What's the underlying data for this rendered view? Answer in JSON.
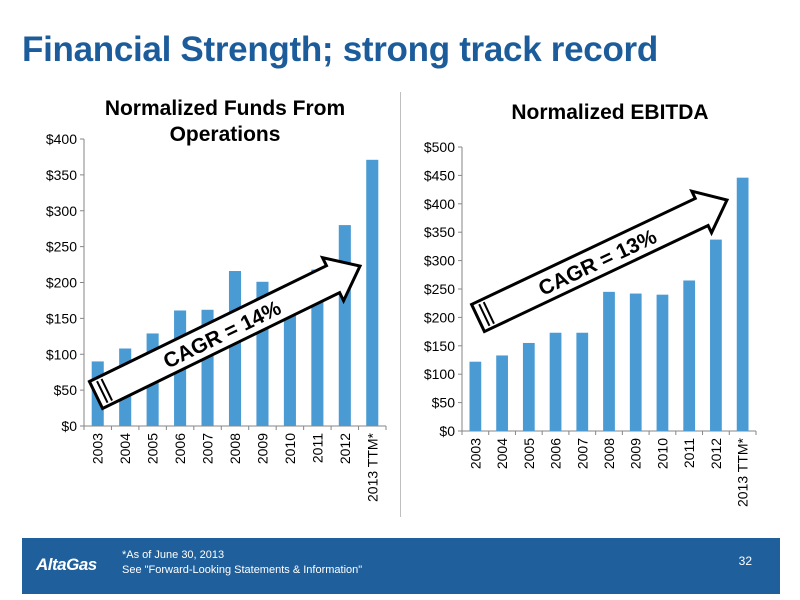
{
  "slide": {
    "title": "Financial Strength; strong track record",
    "page_number": "32",
    "footnotes": [
      "*As of June 30, 2013",
      "See \"Forward-Looking Statements & Information\""
    ],
    "logo_text": "AltaGas"
  },
  "colors": {
    "bar": "#4a9bd4",
    "title": "#1c5c9a",
    "footer": "#1f5f9b"
  },
  "chart_data": [
    {
      "type": "bar",
      "title": "Normalized Funds From Operations",
      "categories": [
        "2003",
        "2004",
        "2005",
        "2006",
        "2007",
        "2008",
        "2009",
        "2010",
        "2011",
        "2012",
        "2013 TTM*"
      ],
      "values": [
        90,
        108,
        129,
        161,
        162,
        216,
        201,
        192,
        218,
        280,
        371
      ],
      "ylim": [
        0,
        400
      ],
      "yticks": [
        "$0",
        "$50",
        "$100",
        "$150",
        "$200",
        "$250",
        "$300",
        "$350",
        "$400"
      ],
      "ytick_step": 50,
      "xlabel": "",
      "ylabel": "",
      "grid": false,
      "annotation": "CAGR = 14%"
    },
    {
      "type": "bar",
      "title": "Normalized EBITDA",
      "categories": [
        "2003",
        "2004",
        "2005",
        "2006",
        "2007",
        "2008",
        "2009",
        "2010",
        "2011",
        "2012",
        "2013 TTM*"
      ],
      "values": [
        122,
        133,
        155,
        173,
        173,
        245,
        242,
        240,
        265,
        337,
        446
      ],
      "ylim": [
        0,
        500
      ],
      "yticks": [
        "$0",
        "$50",
        "$100",
        "$150",
        "$200",
        "$250",
        "$300",
        "$350",
        "$400",
        "$450",
        "$500"
      ],
      "ytick_step": 50,
      "xlabel": "",
      "ylabel": "",
      "grid": false,
      "annotation": "CAGR = 13%"
    }
  ]
}
